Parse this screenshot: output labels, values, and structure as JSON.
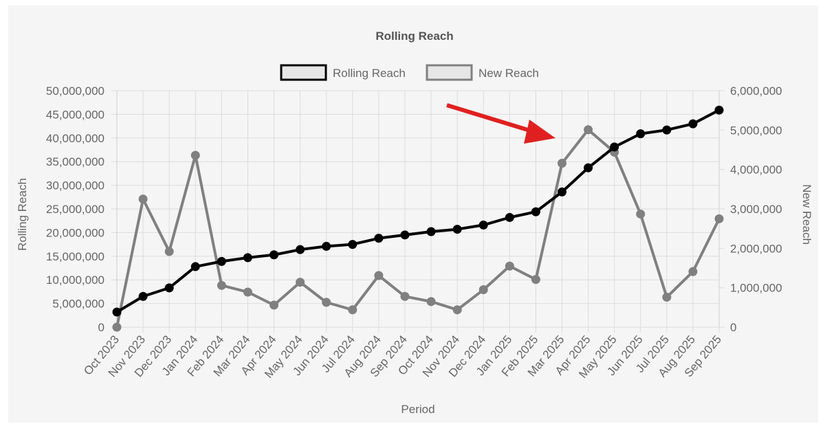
{
  "chart_data": {
    "type": "line",
    "title": "Rolling Reach",
    "xlabel": "Period",
    "ylabel_left": "Rolling Reach",
    "ylabel_right": "New Reach",
    "legend_position": "top-center",
    "grid": true,
    "categories": [
      "Oct 2023",
      "Nov 2023",
      "Dec 2023",
      "Jan 2024",
      "Feb 2024",
      "Mar 2024",
      "Apr 2024",
      "May 2024",
      "Jun 2024",
      "Jul 2024",
      "Aug 2024",
      "Sep 2024",
      "Oct 2024",
      "Nov 2024",
      "Dec 2024",
      "Jan 2025",
      "Feb 2025",
      "Mar 2025",
      "Apr 2025",
      "May 2025",
      "Jun 2025",
      "Jul 2025",
      "Aug 2025",
      "Sep 2025"
    ],
    "y_left": {
      "min": 0,
      "max": 50000000,
      "ticks": [
        "0",
        "5,000,000",
        "10,000,000",
        "15,000,000",
        "20,000,000",
        "25,000,000",
        "30,000,000",
        "35,000,000",
        "40,000,000",
        "45,000,000",
        "50,000,000"
      ]
    },
    "y_right": {
      "min": 0,
      "max": 6000000,
      "ticks": [
        "0",
        "1,000,000",
        "2,000,000",
        "3,000,000",
        "4,000,000",
        "5,000,000",
        "6,000,000"
      ]
    },
    "series": [
      {
        "name": "Rolling Reach",
        "axis": "left",
        "color": "#000000",
        "values": [
          3200000,
          6500000,
          8300000,
          12800000,
          13900000,
          14700000,
          15300000,
          16400000,
          17100000,
          17500000,
          18800000,
          19500000,
          20200000,
          20700000,
          21600000,
          23200000,
          24400000,
          28600000,
          33700000,
          38100000,
          40900000,
          41700000,
          43000000,
          45900000
        ]
      },
      {
        "name": "New Reach",
        "axis": "right",
        "color": "#808080",
        "values": [
          0,
          3250000,
          1920000,
          4360000,
          1060000,
          890000,
          560000,
          1140000,
          630000,
          440000,
          1310000,
          780000,
          650000,
          440000,
          950000,
          1550000,
          1210000,
          4160000,
          5010000,
          4440000,
          2870000,
          760000,
          1410000,
          2750000
        ]
      }
    ],
    "annotations": [
      {
        "type": "arrow",
        "color": "#e02020",
        "from": "Jan 2025",
        "to": "Mar 2025",
        "pointing_at": "New Reach"
      }
    ]
  }
}
